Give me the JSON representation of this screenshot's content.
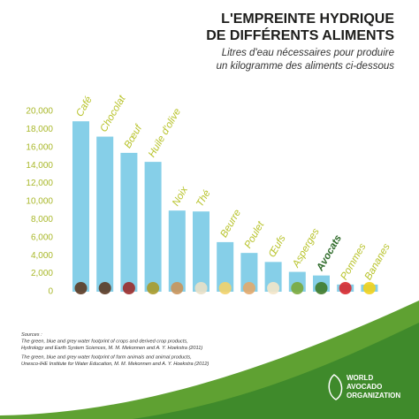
{
  "chart_data": {
    "type": "bar",
    "title": [
      "L'EMPREINTE HYDRIQUE",
      "DE DIFFÉRENTS ALIMENTS"
    ],
    "subtitle": [
      "Litres d'eau nécessaires pour produire",
      "un kilogramme des aliments ci-dessous"
    ],
    "categories": [
      "Café",
      "Chocolat",
      "Bœuf",
      "Huile d'olive",
      "Noix",
      "Thé",
      "Beurre",
      "Poulet",
      "Œufs",
      "Asperges",
      "Avocats",
      "Pommes",
      "Bananes"
    ],
    "values": [
      18900,
      17200,
      15400,
      14400,
      9000,
      8900,
      5500,
      4300,
      3300,
      2200,
      1800,
      800,
      790
    ],
    "color": "#86cfe8",
    "label_colors": [
      "#b8c32b",
      "#b8c32b",
      "#b8c32b",
      "#b8c32b",
      "#b8c32b",
      "#b8c32b",
      "#b8c32b",
      "#b8c32b",
      "#b8c32b",
      "#b8c32b",
      "#2f6b2a",
      "#b8c32b",
      "#b8c32b"
    ],
    "ylim": [
      0,
      20000
    ],
    "yticks": [
      0,
      {
        "value": 2000,
        "label": "2,000"
      },
      {
        "value": 4000,
        "label": "4,000"
      },
      {
        "value": 6000,
        "label": "6,000"
      },
      {
        "value": 8000,
        "label": "8,000"
      },
      {
        "value": 10000,
        "label": "10,000"
      },
      {
        "value": 12000,
        "label": "12,000"
      },
      {
        "value": 14000,
        "label": "14,000"
      },
      {
        "value": 16000,
        "label": "16,000"
      },
      {
        "value": 18000,
        "label": "18,000"
      },
      {
        "value": 20000,
        "label": "20,000"
      }
    ],
    "grid": false,
    "sources": [
      "Sources :",
      "The green, blue and grey water footprint of crops and derived crop products,",
      "Hydrology and Earth System Sciences, M. M. Mekonnen and A. Y. Hoekstra (2011)",
      "The green, blue and grey water footprint of farm animals and animal products,",
      "Unesco-IHE Institute for Water Education, M. M. Mekonnen and A. Y. Hoekstra (2012)"
    ],
    "logo": [
      "WORLD",
      "AVOCADO",
      "ORGANIZATION"
    ]
  }
}
